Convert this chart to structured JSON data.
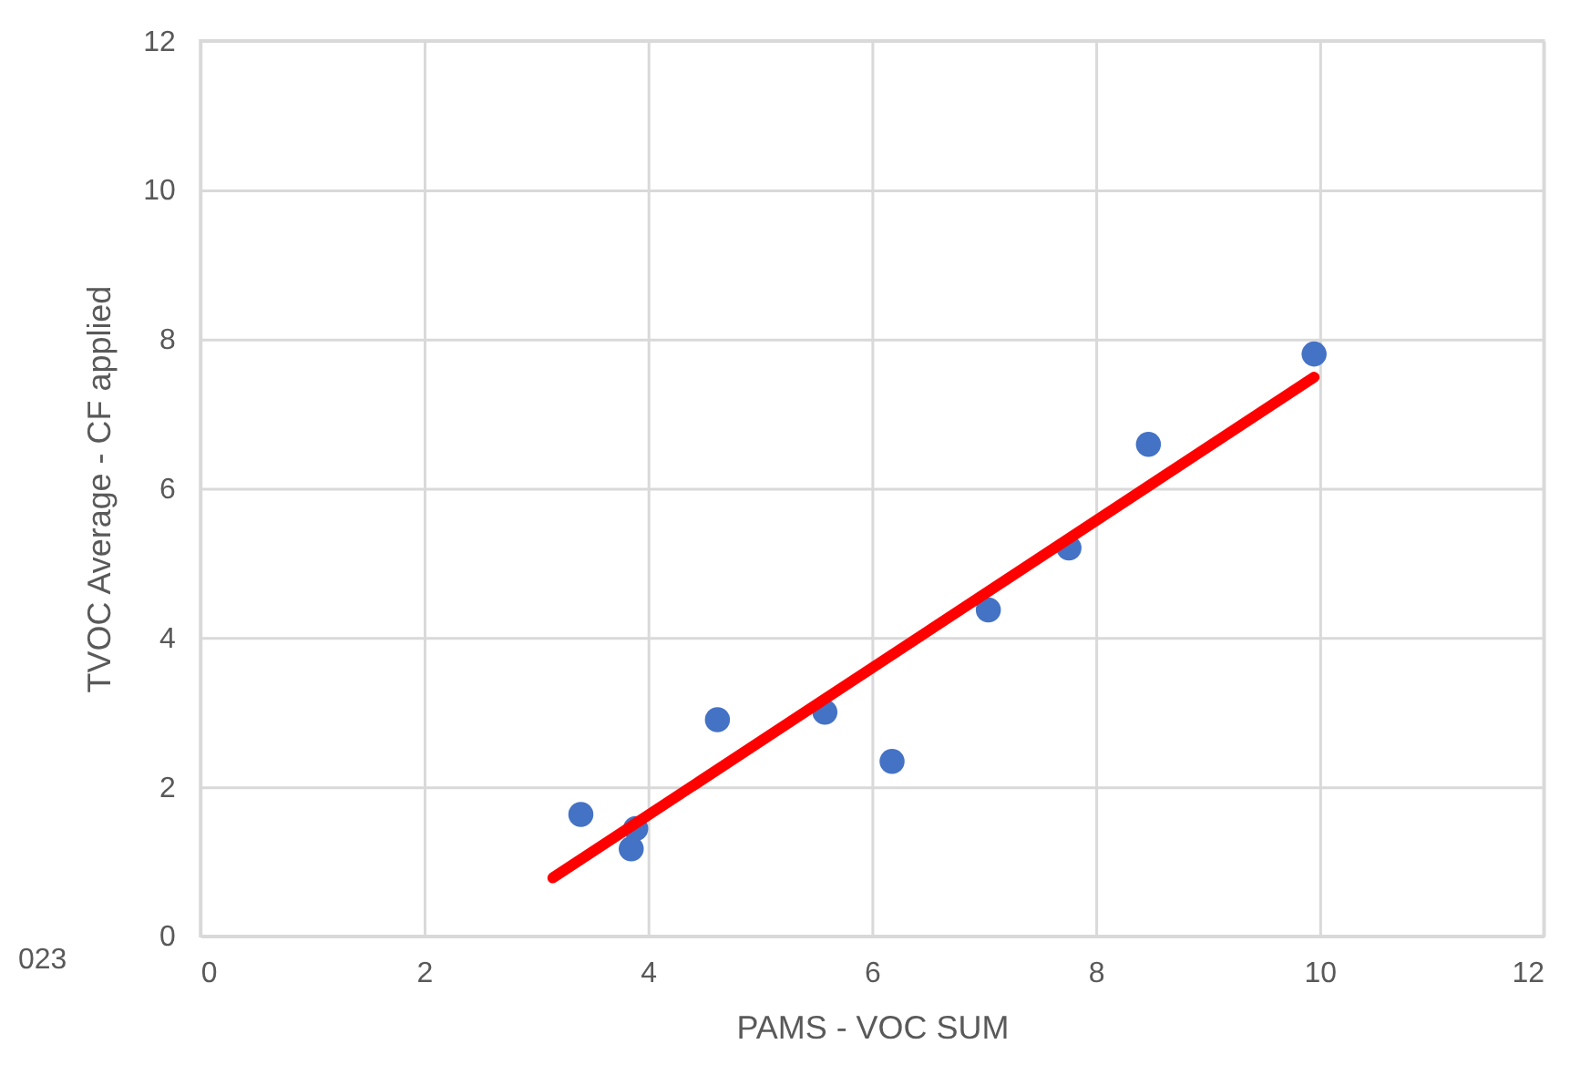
{
  "chart_data": {
    "type": "scatter",
    "xlabel": "PAMS - VOC SUM",
    "ylabel": "TVOC Average - CF applied",
    "xlim": [
      0,
      12
    ],
    "xticks": [
      0,
      2,
      4,
      6,
      8,
      10,
      12
    ],
    "ylim": [
      0,
      12
    ],
    "yticks": [
      0,
      2,
      4,
      6,
      8,
      10,
      12
    ],
    "grid": true,
    "annotations": [
      "023"
    ],
    "series": [
      {
        "color": "#4472c4",
        "marker": "circle",
        "x": [
          3.4,
          3.89,
          3.85,
          4.62,
          5.58,
          6.18,
          7.04,
          7.76,
          8.47,
          9.95
        ],
        "values": [
          1.63,
          1.44,
          1.17,
          2.9,
          3.0,
          2.34,
          4.37,
          5.2,
          6.59,
          7.8
        ]
      },
      {
        "type": "line",
        "color": "#ff0000",
        "x": [
          3.15,
          9.95
        ],
        "values": [
          0.78,
          7.49
        ]
      }
    ]
  }
}
